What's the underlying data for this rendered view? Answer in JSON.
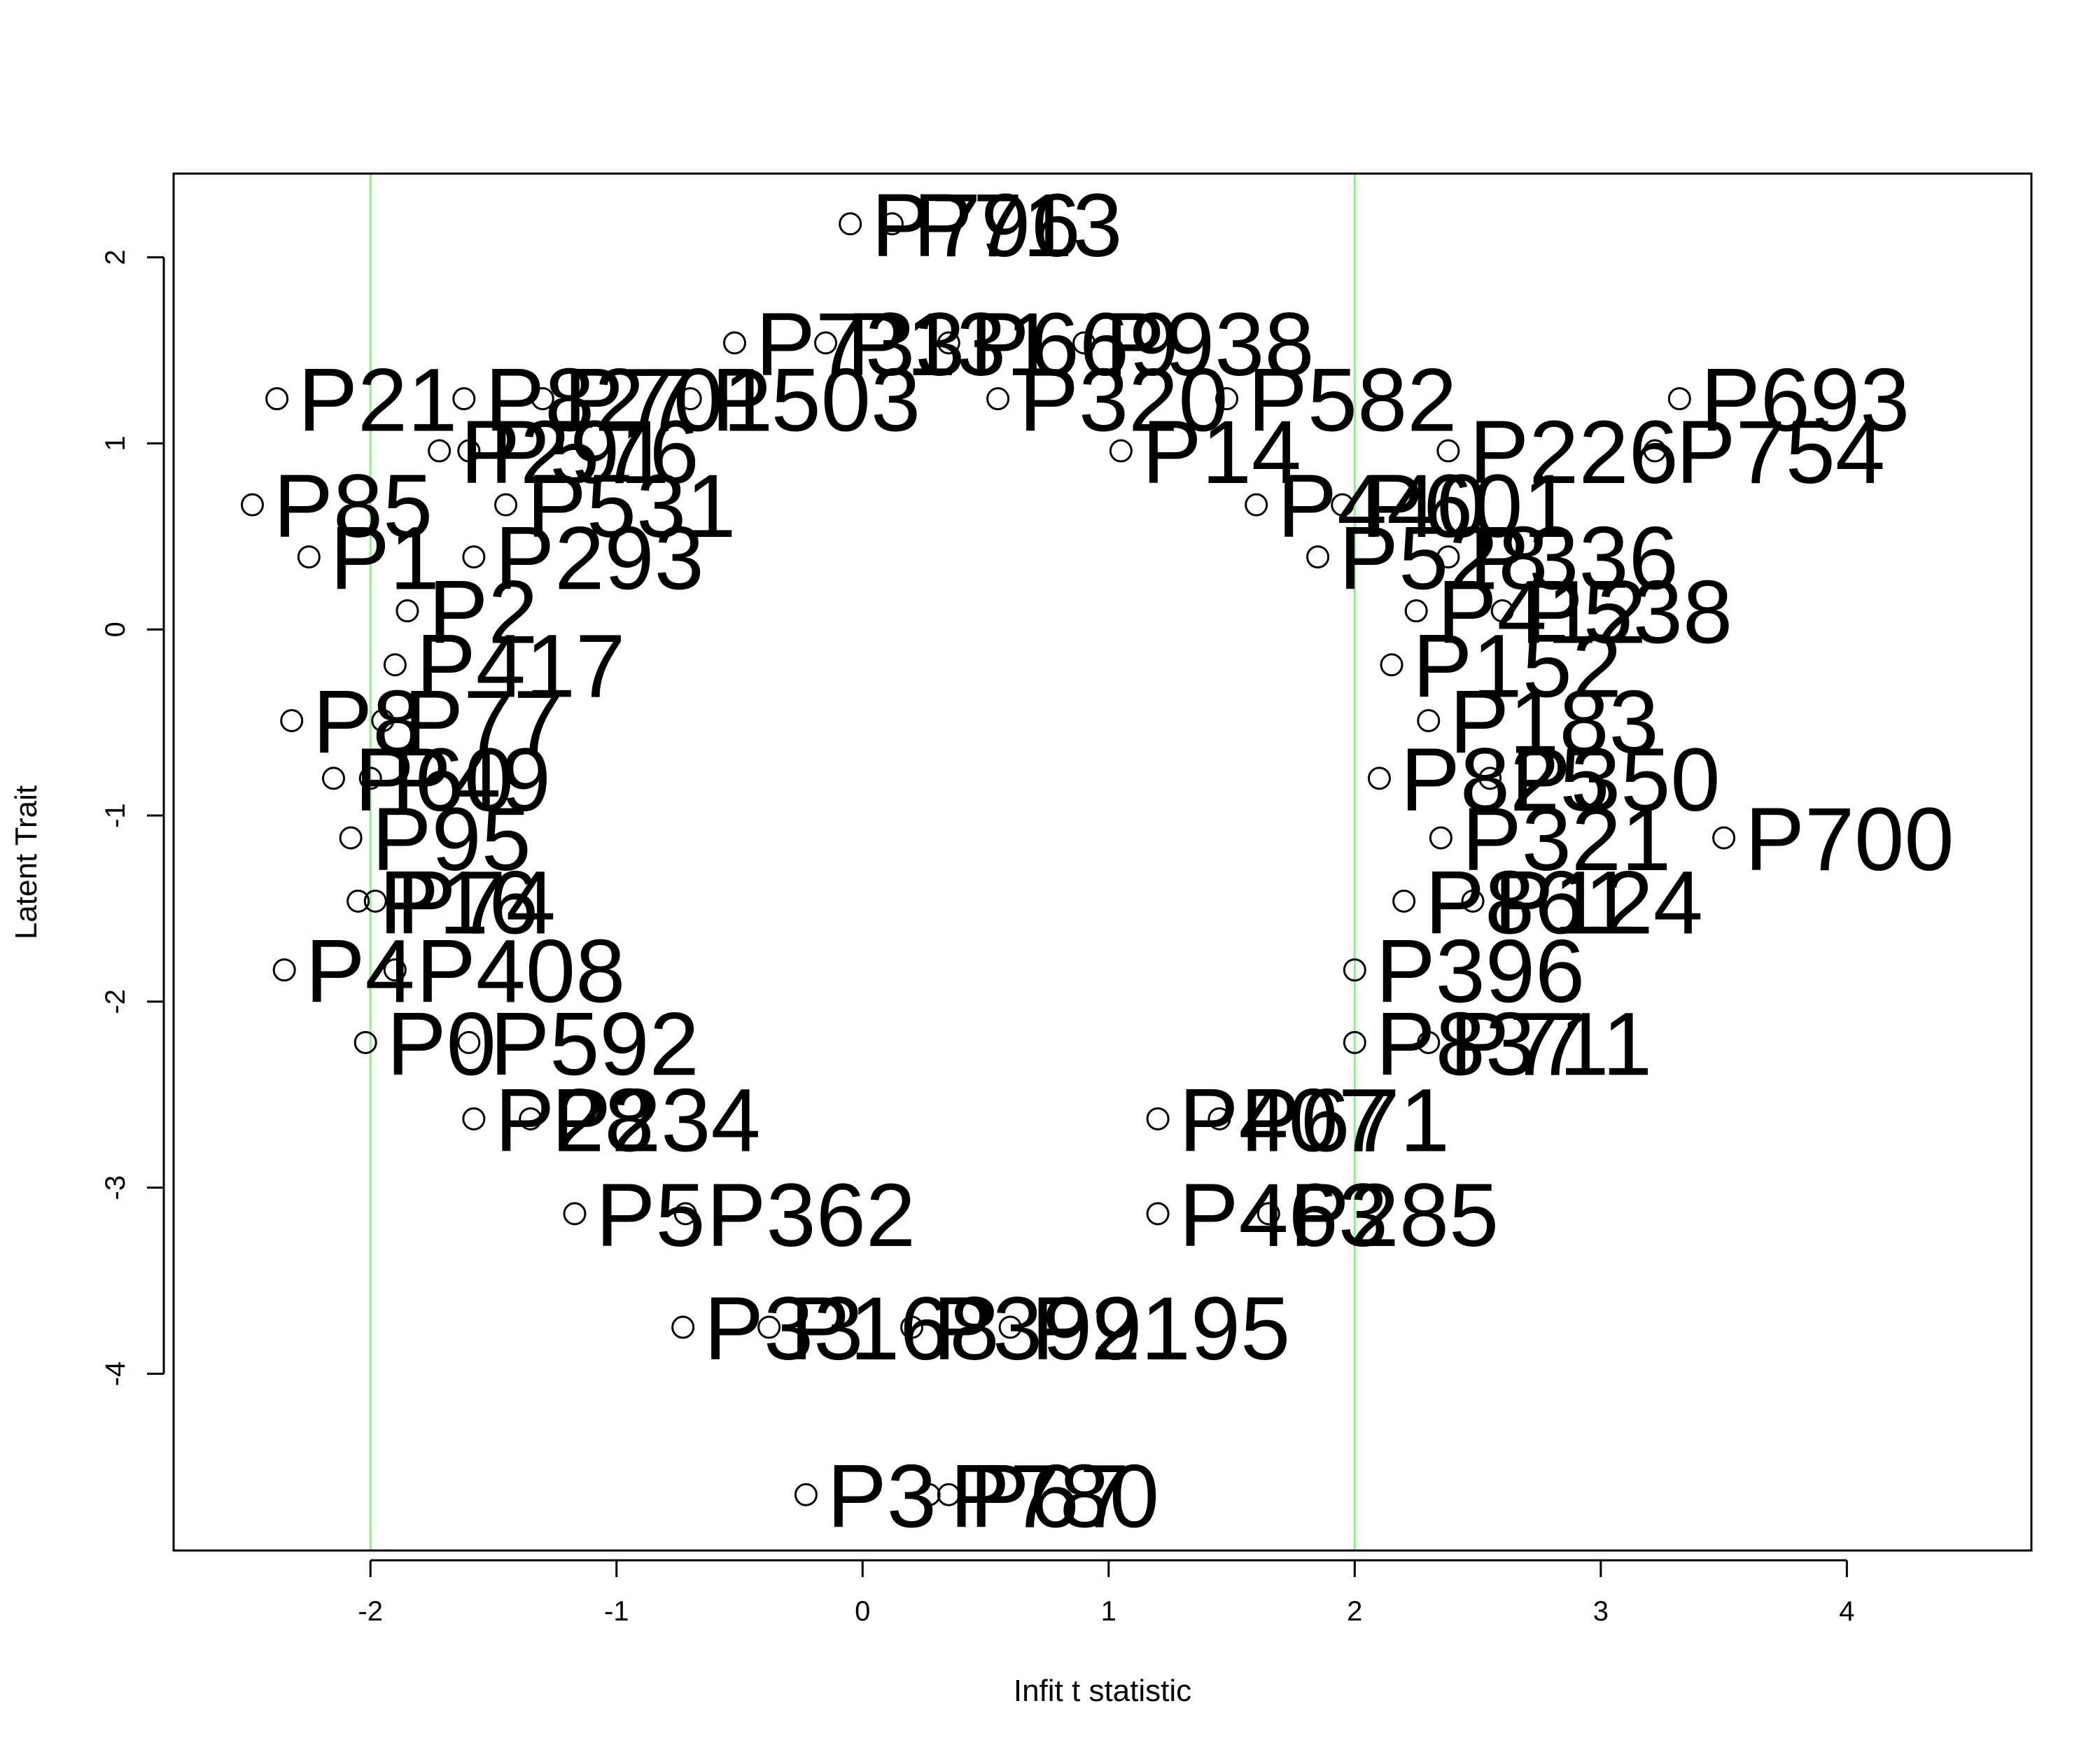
{
  "chart_data": {
    "type": "scatter",
    "title": "",
    "xlabel": "Infit t statistic",
    "ylabel": "Latent Trait",
    "xlim": [
      -2.8,
      4.75
    ],
    "ylim": [
      -4.95,
      2.45
    ],
    "x_ticks": [
      -2,
      -1,
      0,
      1,
      2,
      3,
      4
    ],
    "y_ticks": [
      -4,
      -3,
      -2,
      -1,
      0,
      1,
      2
    ],
    "reference_lines_x": [
      -2,
      2
    ],
    "reference_line_color": "#90EE90",
    "point_color": "#000000",
    "grid": false,
    "legend": "none",
    "points": [
      {
        "label": "P796",
        "x": -0.05,
        "y": 2.18
      },
      {
        "label": "P713",
        "x": 0.12,
        "y": 2.18
      },
      {
        "label": "P733",
        "x": -0.52,
        "y": 1.54
      },
      {
        "label": "P131",
        "x": -0.15,
        "y": 1.54
      },
      {
        "label": "P669",
        "x": 0.35,
        "y": 1.54
      },
      {
        "label": "P938",
        "x": 0.9,
        "y": 1.54
      },
      {
        "label": "P21",
        "x": -2.38,
        "y": 1.24
      },
      {
        "label": "P827",
        "x": -1.62,
        "y": 1.24
      },
      {
        "label": "P701",
        "x": -1.3,
        "y": 1.24
      },
      {
        "label": "P503",
        "x": -0.7,
        "y": 1.24
      },
      {
        "label": "P320",
        "x": 0.55,
        "y": 1.24
      },
      {
        "label": "P582",
        "x": 1.48,
        "y": 1.24
      },
      {
        "label": "P693",
        "x": 3.32,
        "y": 1.24
      },
      {
        "label": "P226",
        "x": 2.38,
        "y": 0.96
      },
      {
        "label": "P754",
        "x": 3.22,
        "y": 0.96
      },
      {
        "label": "P14",
        "x": 1.05,
        "y": 0.96
      },
      {
        "label": "P576",
        "x": -1.6,
        "y": 0.96
      },
      {
        "label": "P291",
        "x": -1.72,
        "y": 0.96
      },
      {
        "label": "P85",
        "x": -2.48,
        "y": 0.67
      },
      {
        "label": "P531",
        "x": -1.45,
        "y": 0.67
      },
      {
        "label": "P440",
        "x": 1.6,
        "y": 0.67
      },
      {
        "label": "P601",
        "x": 1.95,
        "y": 0.67
      },
      {
        "label": "P1",
        "x": -2.25,
        "y": 0.39
      },
      {
        "label": "P293",
        "x": -1.58,
        "y": 0.39
      },
      {
        "label": "P336",
        "x": 2.38,
        "y": 0.39
      },
      {
        "label": "P528",
        "x": 1.85,
        "y": 0.39
      },
      {
        "label": "P2",
        "x": -1.85,
        "y": 0.1
      },
      {
        "label": "P538",
        "x": 2.6,
        "y": 0.1
      },
      {
        "label": "P412",
        "x": 2.25,
        "y": 0.1
      },
      {
        "label": "P152",
        "x": 2.15,
        "y": -0.19
      },
      {
        "label": "P417",
        "x": -1.9,
        "y": -0.19
      },
      {
        "label": "P8",
        "x": -2.32,
        "y": -0.49
      },
      {
        "label": "P183",
        "x": 2.3,
        "y": -0.49
      },
      {
        "label": "P77",
        "x": -1.95,
        "y": -0.49
      },
      {
        "label": "P350",
        "x": 2.55,
        "y": -0.8
      },
      {
        "label": "P825",
        "x": 2.1,
        "y": -0.8
      },
      {
        "label": "P60",
        "x": -2.15,
        "y": -0.8
      },
      {
        "label": "P49",
        "x": -2.0,
        "y": -0.8
      },
      {
        "label": "P700",
        "x": 3.5,
        "y": -1.12
      },
      {
        "label": "P321",
        "x": 2.35,
        "y": -1.12
      },
      {
        "label": "P95",
        "x": -2.08,
        "y": -1.12
      },
      {
        "label": "P124",
        "x": 2.48,
        "y": -1.46
      },
      {
        "label": "P861",
        "x": 2.2,
        "y": -1.46
      },
      {
        "label": "P16",
        "x": -2.05,
        "y": -1.46
      },
      {
        "label": "P74",
        "x": -1.98,
        "y": -1.46
      },
      {
        "label": "P4",
        "x": -2.35,
        "y": -1.83
      },
      {
        "label": "P408",
        "x": -1.9,
        "y": -1.83
      },
      {
        "label": "P396",
        "x": 2.0,
        "y": -1.83
      },
      {
        "label": "P0",
        "x": -2.02,
        "y": -2.22
      },
      {
        "label": "P592",
        "x": -1.6,
        "y": -2.22
      },
      {
        "label": "P711",
        "x": 2.3,
        "y": -2.22
      },
      {
        "label": "P837",
        "x": 2.0,
        "y": -2.22
      },
      {
        "label": "P28",
        "x": -1.58,
        "y": -2.63
      },
      {
        "label": "P234",
        "x": -1.35,
        "y": -2.63
      },
      {
        "label": "P407",
        "x": 1.2,
        "y": -2.63
      },
      {
        "label": "P671",
        "x": 1.45,
        "y": -2.63
      },
      {
        "label": "P5",
        "x": -1.17,
        "y": -3.14
      },
      {
        "label": "P362",
        "x": -0.72,
        "y": -3.14
      },
      {
        "label": "P285",
        "x": 1.65,
        "y": -3.14
      },
      {
        "label": "P463",
        "x": 1.2,
        "y": -3.14
      },
      {
        "label": "P33",
        "x": -0.73,
        "y": -3.75
      },
      {
        "label": "P168",
        "x": -0.38,
        "y": -3.75
      },
      {
        "label": "P399",
        "x": 0.2,
        "y": -3.75
      },
      {
        "label": "P2195",
        "x": 0.6,
        "y": -3.75
      },
      {
        "label": "P3",
        "x": -0.23,
        "y": -4.65
      },
      {
        "label": "P780",
        "x": 0.27,
        "y": -4.65
      },
      {
        "label": "P67",
        "x": 0.35,
        "y": -4.65
      }
    ]
  }
}
